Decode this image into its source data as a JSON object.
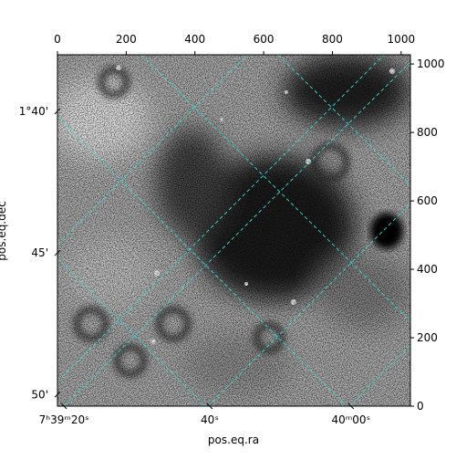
{
  "chart_data": {
    "type": "image",
    "x_label": "pos.eq.ra",
    "y_label": "pos.eq.dec",
    "xlim": [
      0,
      1027
    ],
    "xticks": [
      0,
      200,
      400,
      600,
      800,
      1000
    ],
    "ylim": [
      0,
      1027
    ],
    "yticks": [
      0,
      200,
      400,
      600,
      800,
      1000
    ],
    "ra_ticks": [
      {
        "value": 19,
        "label": "7ʰ39ᵐ20ˢ"
      },
      {
        "value": 443,
        "label": "40ˢ"
      },
      {
        "value": 854,
        "label": "40ᵐ00ˢ"
      }
    ],
    "dec_ticks": [
      {
        "value": 862,
        "label": "1°40'"
      },
      {
        "value": 448,
        "label": "45'"
      },
      {
        "value": 34,
        "label": "50'"
      }
    ],
    "grid_color": "#33dddd"
  }
}
